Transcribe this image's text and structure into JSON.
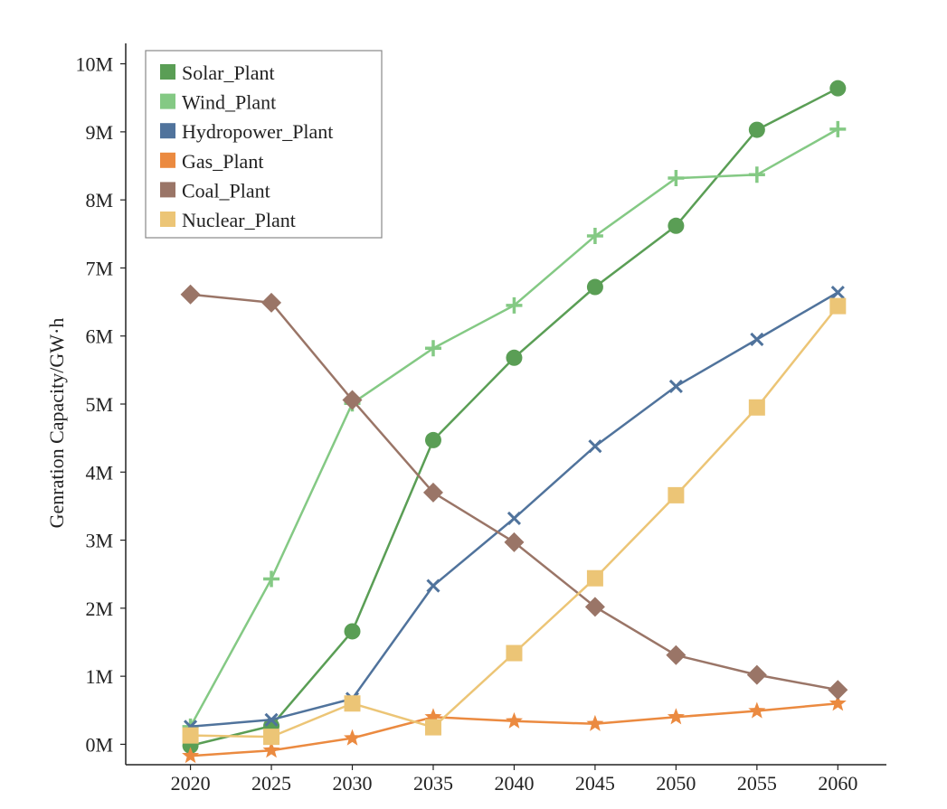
{
  "chart_data": {
    "type": "line",
    "title": "",
    "xlabel": "",
    "ylabel": "Genration Capacity/GW·h",
    "x": [
      2020,
      2025,
      2030,
      2035,
      2040,
      2045,
      2050,
      2055,
      2060
    ],
    "x_tick_labels": [
      "2020",
      "2025",
      "2030",
      "2035",
      "2040",
      "2045",
      "2050",
      "2055",
      "2060"
    ],
    "y_ticks": [
      0,
      1000000,
      2000000,
      3000000,
      4000000,
      5000000,
      6000000,
      7000000,
      8000000,
      9000000,
      10000000
    ],
    "y_tick_labels": [
      "0M",
      "1M",
      "2M",
      "3M",
      "4M",
      "5M",
      "6M",
      "7M",
      "8M",
      "9M",
      "10M"
    ],
    "ylim": [
      -300000,
      10300000
    ],
    "xlim": [
      2016,
      2063
    ],
    "grid": false,
    "legend_position": "top-left",
    "series": [
      {
        "name": "Solar_Plant",
        "marker": "circle",
        "color": "#5a9e55",
        "values": [
          -20000,
          270000,
          1660000,
          4470000,
          5680000,
          6720000,
          7620000,
          9030000,
          9640000
        ]
      },
      {
        "name": "Wind_Plant",
        "marker": "plus",
        "color": "#84c984",
        "values": [
          260000,
          2430000,
          5010000,
          5820000,
          6450000,
          7470000,
          8320000,
          8370000,
          9040000
        ]
      },
      {
        "name": "Hydropower_Plant",
        "marker": "x",
        "color": "#50739c",
        "values": [
          260000,
          360000,
          670000,
          2330000,
          3320000,
          4380000,
          5260000,
          5950000,
          6640000
        ]
      },
      {
        "name": "Gas_Plant",
        "marker": "star",
        "color": "#eb8a40",
        "values": [
          -170000,
          -90000,
          90000,
          400000,
          340000,
          300000,
          400000,
          490000,
          600000
        ]
      },
      {
        "name": "Coal_Plant",
        "marker": "diamond",
        "color": "#9a7567",
        "values": [
          6610000,
          6490000,
          5060000,
          3700000,
          2970000,
          2020000,
          1310000,
          1020000,
          800000
        ]
      },
      {
        "name": "Nuclear_Plant",
        "marker": "square",
        "color": "#ecc576",
        "values": [
          130000,
          110000,
          600000,
          250000,
          1340000,
          2440000,
          3660000,
          4950000,
          6440000
        ]
      }
    ]
  }
}
